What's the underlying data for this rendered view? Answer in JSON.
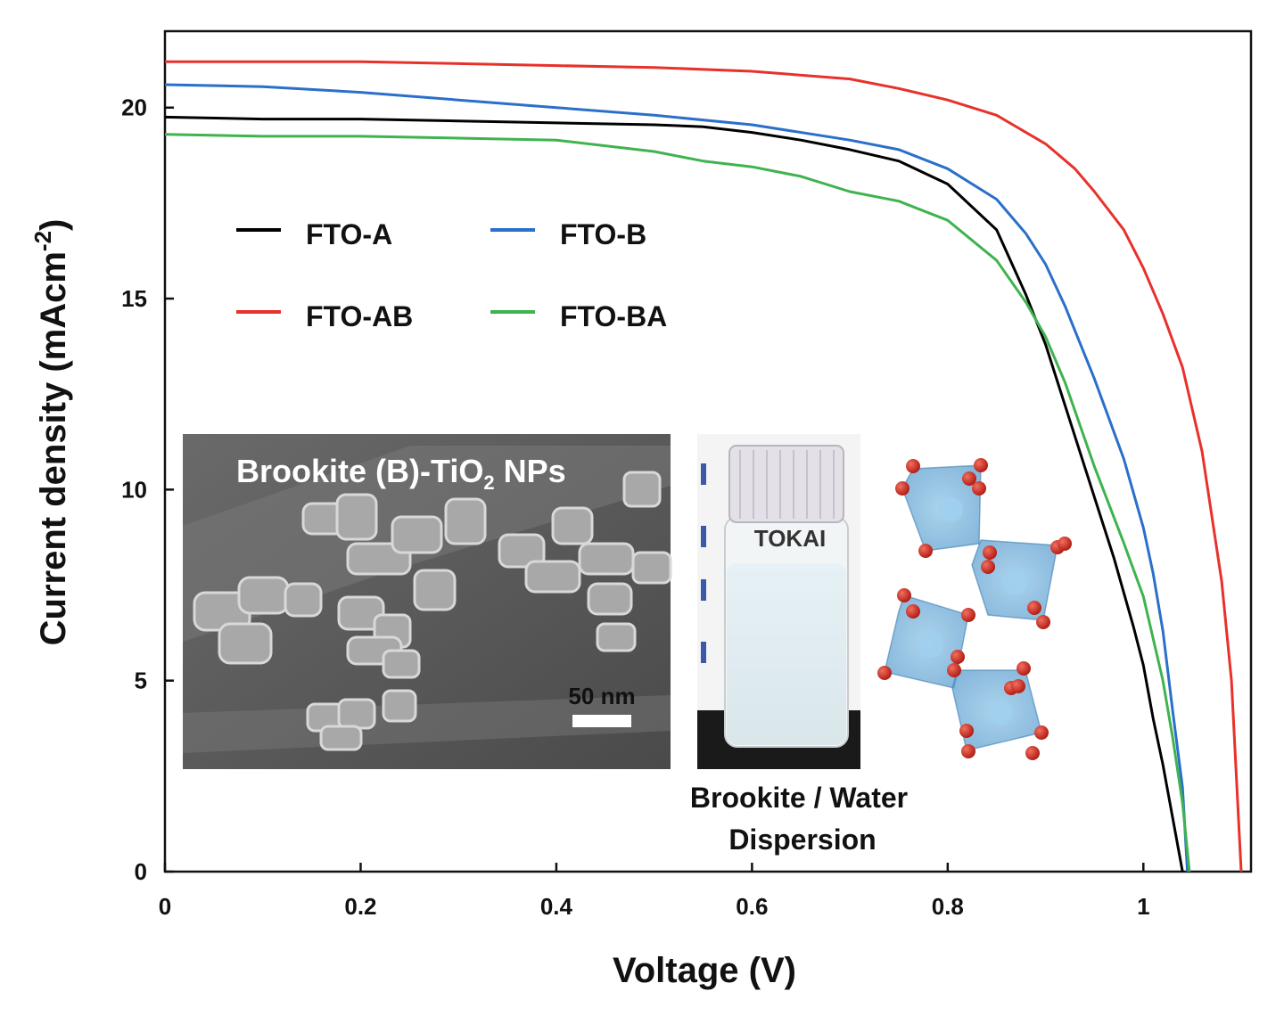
{
  "chart_data": {
    "type": "line",
    "xlabel": "Voltage (V)",
    "ylabel": "Current density (mAcm",
    "ylabel_sup": "-2",
    "ylabel_close": ")",
    "xlim": [
      0,
      1.11
    ],
    "ylim": [
      0,
      22
    ],
    "x_ticks": [
      0,
      0.2,
      0.4,
      0.6,
      0.8,
      1
    ],
    "x_tick_labels": [
      "0",
      "0.2",
      "0.4",
      "0.6",
      "0.8",
      "1"
    ],
    "y_ticks": [
      0,
      5,
      10,
      15,
      20
    ],
    "y_tick_labels": [
      "0",
      "5",
      "10",
      "15",
      "20"
    ],
    "grid": false,
    "legend_position": "upper-left",
    "series": [
      {
        "name": "FTO-A",
        "color": "#000000",
        "points": [
          [
            0,
            19.75
          ],
          [
            0.1,
            19.7
          ],
          [
            0.2,
            19.7
          ],
          [
            0.3,
            19.65
          ],
          [
            0.4,
            19.6
          ],
          [
            0.5,
            19.55
          ],
          [
            0.55,
            19.5
          ],
          [
            0.6,
            19.35
          ],
          [
            0.65,
            19.15
          ],
          [
            0.7,
            18.9
          ],
          [
            0.75,
            18.6
          ],
          [
            0.8,
            18.0
          ],
          [
            0.85,
            16.8
          ],
          [
            0.88,
            15.1
          ],
          [
            0.9,
            13.8
          ],
          [
            0.92,
            12.2
          ],
          [
            0.95,
            9.8
          ],
          [
            0.97,
            8.2
          ],
          [
            0.99,
            6.4
          ],
          [
            1.0,
            5.4
          ],
          [
            1.01,
            4.0
          ],
          [
            1.02,
            2.8
          ],
          [
            1.03,
            1.4
          ],
          [
            1.04,
            0
          ]
        ]
      },
      {
        "name": "FTO-B",
        "color": "#2a6fc9",
        "points": [
          [
            0,
            20.6
          ],
          [
            0.1,
            20.55
          ],
          [
            0.2,
            20.4
          ],
          [
            0.3,
            20.2
          ],
          [
            0.4,
            20.0
          ],
          [
            0.5,
            19.8
          ],
          [
            0.6,
            19.55
          ],
          [
            0.7,
            19.15
          ],
          [
            0.75,
            18.9
          ],
          [
            0.8,
            18.4
          ],
          [
            0.85,
            17.6
          ],
          [
            0.88,
            16.7
          ],
          [
            0.9,
            15.9
          ],
          [
            0.92,
            14.8
          ],
          [
            0.95,
            12.9
          ],
          [
            0.98,
            10.8
          ],
          [
            1.0,
            9.0
          ],
          [
            1.01,
            7.8
          ],
          [
            1.02,
            6.3
          ],
          [
            1.03,
            4.2
          ],
          [
            1.04,
            2.2
          ],
          [
            1.045,
            0
          ]
        ]
      },
      {
        "name": "FTO-AB",
        "color": "#e8312a",
        "points": [
          [
            0,
            21.2
          ],
          [
            0.1,
            21.2
          ],
          [
            0.2,
            21.2
          ],
          [
            0.3,
            21.15
          ],
          [
            0.4,
            21.1
          ],
          [
            0.5,
            21.05
          ],
          [
            0.6,
            20.95
          ],
          [
            0.7,
            20.75
          ],
          [
            0.75,
            20.5
          ],
          [
            0.8,
            20.2
          ],
          [
            0.85,
            19.8
          ],
          [
            0.9,
            19.05
          ],
          [
            0.93,
            18.4
          ],
          [
            0.95,
            17.8
          ],
          [
            0.98,
            16.8
          ],
          [
            1.0,
            15.8
          ],
          [
            1.02,
            14.6
          ],
          [
            1.04,
            13.2
          ],
          [
            1.06,
            11.0
          ],
          [
            1.08,
            7.6
          ],
          [
            1.09,
            5.0
          ],
          [
            1.1,
            0
          ]
        ]
      },
      {
        "name": "FTO-BA",
        "color": "#3fb34f",
        "points": [
          [
            0,
            19.3
          ],
          [
            0.1,
            19.25
          ],
          [
            0.2,
            19.25
          ],
          [
            0.3,
            19.2
          ],
          [
            0.4,
            19.15
          ],
          [
            0.5,
            18.85
          ],
          [
            0.55,
            18.6
          ],
          [
            0.6,
            18.45
          ],
          [
            0.65,
            18.2
          ],
          [
            0.7,
            17.8
          ],
          [
            0.75,
            17.55
          ],
          [
            0.8,
            17.05
          ],
          [
            0.85,
            16.0
          ],
          [
            0.88,
            14.9
          ],
          [
            0.9,
            14.0
          ],
          [
            0.92,
            12.8
          ],
          [
            0.95,
            10.6
          ],
          [
            0.98,
            8.6
          ],
          [
            1.0,
            7.2
          ],
          [
            1.02,
            5.0
          ],
          [
            1.03,
            3.5
          ],
          [
            1.04,
            1.8
          ],
          [
            1.047,
            0
          ]
        ]
      }
    ]
  },
  "inset": {
    "sem_title": "Brookite (B)-TiO",
    "sem_title_sub": "2",
    "sem_title_tail": " NPs",
    "scale_label": "50 nm",
    "bottle_brand": "TOKAI",
    "dispersion_line1": "Brookite / Water",
    "dispersion_line2": "Dispersion"
  }
}
